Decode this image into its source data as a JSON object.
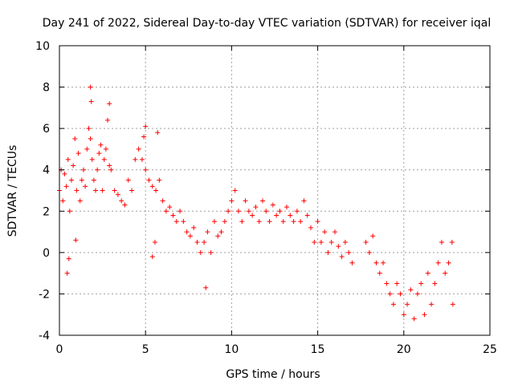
{
  "chart_data": {
    "type": "scatter",
    "title": "Day 241 of 2022, Sidereal Day-to-day VTEC variation (SDTVAR) for receiver iqal",
    "xlabel": "GPS time / hours",
    "ylabel": "SDTVAR / TECUs",
    "xlim": [
      0,
      25
    ],
    "ylim": [
      -4,
      10
    ],
    "xticks": [
      0,
      5,
      10,
      15,
      20,
      25
    ],
    "yticks": [
      -4,
      -2,
      0,
      2,
      4,
      6,
      8,
      10
    ],
    "xtick_labels": [
      "0",
      "5",
      "10",
      "15",
      "20",
      "25"
    ],
    "ytick_labels": [
      "-4",
      "-2",
      "0",
      "2",
      "4",
      "6",
      "8",
      "10"
    ],
    "grid": true,
    "marker": "+",
    "color": "#ff0000",
    "series": [
      {
        "name": "iqal",
        "x": [
          0.0,
          0.1,
          0.2,
          0.3,
          0.4,
          0.5,
          0.6,
          0.7,
          0.8,
          0.9,
          1.0,
          1.1,
          1.2,
          1.3,
          1.4,
          1.5,
          1.6,
          1.7,
          1.8,
          1.9,
          2.0,
          2.1,
          2.2,
          2.3,
          2.4,
          2.5,
          2.6,
          2.7,
          2.8,
          2.9,
          3.0,
          3.2,
          3.4,
          3.6,
          3.8,
          4.0,
          4.2,
          4.4,
          4.6,
          4.8,
          5.0,
          5.2,
          5.4,
          5.6,
          5.8,
          6.0,
          6.2,
          6.4,
          6.6,
          6.8,
          7.0,
          7.2,
          7.4,
          7.6,
          7.8,
          8.0,
          8.2,
          8.4,
          8.6,
          8.8,
          9.0,
          9.2,
          9.4,
          9.6,
          9.8,
          10.0,
          10.2,
          10.4,
          10.6,
          10.8,
          11.0,
          11.2,
          11.4,
          11.6,
          11.8,
          12.0,
          12.2,
          12.4,
          12.6,
          12.8,
          13.0,
          13.2,
          13.4,
          13.6,
          13.8,
          14.0,
          14.2,
          14.4,
          14.6,
          14.8,
          15.0,
          15.2,
          15.4,
          15.6,
          15.8,
          16.0,
          16.2,
          16.4,
          16.6,
          16.8,
          17.0,
          17.8,
          18.0,
          18.2,
          18.4,
          18.6,
          18.8,
          19.0,
          19.2,
          19.4,
          19.6,
          19.8,
          20.0,
          20.2,
          20.4,
          20.6,
          20.8,
          21.0,
          21.2,
          21.4,
          21.6,
          21.8,
          22.0,
          22.2,
          22.4,
          22.6,
          22.8
        ],
        "y": [
          3.0,
          4.0,
          2.5,
          3.8,
          3.2,
          4.5,
          2.0,
          3.5,
          4.2,
          5.5,
          3.0,
          4.8,
          2.5,
          3.5,
          4.0,
          3.2,
          5.0,
          6.0,
          5.5,
          4.5,
          3.5,
          3.0,
          4.0,
          4.8,
          5.2,
          3.0,
          4.5,
          5.0,
          6.4,
          4.2,
          4.0,
          3.0,
          2.8,
          2.5,
          2.3,
          3.5,
          3.0,
          4.5,
          5.0,
          4.5,
          4.0,
          3.5,
          3.2,
          3.0,
          3.5,
          2.5,
          2.0,
          2.2,
          1.8,
          1.5,
          2.0,
          1.5,
          1.0,
          0.8,
          1.2,
          0.5,
          0.0,
          0.5,
          1.0,
          0.0,
          1.5,
          0.8,
          1.0,
          1.5,
          2.0,
          2.5,
          3.0,
          2.0,
          1.5,
          2.5,
          2.0,
          1.8,
          2.2,
          1.5,
          2.5,
          2.0,
          1.5,
          2.3,
          1.8,
          2.0,
          1.5,
          2.2,
          1.8,
          1.5,
          2.0,
          1.5,
          2.5,
          1.8,
          1.2,
          0.5,
          1.5,
          0.5,
          1.0,
          0.0,
          0.5,
          1.0,
          0.3,
          -0.2,
          0.5,
          0.0,
          -0.5,
          0.5,
          0.0,
          0.8,
          -0.5,
          -1.0,
          -0.5,
          -1.5,
          -2.0,
          -2.5,
          -1.5,
          -2.0,
          -3.0,
          -2.5,
          -1.8,
          -3.2,
          -2.0,
          -1.5,
          -3.0,
          -1.0,
          -2.5,
          -1.5,
          -0.5,
          0.5,
          -1.0,
          -0.5,
          0.5
        ],
        "outliers_x": [
          1.8,
          1.85,
          2.9,
          4.9,
          5.0,
          5.4,
          5.7,
          0.45,
          0.55,
          0.95,
          5.55,
          8.5,
          22.85
        ],
        "outliers_y": [
          8.0,
          7.3,
          7.2,
          5.6,
          6.1,
          -0.2,
          5.8,
          -1.0,
          -0.3,
          0.6,
          0.5,
          -1.7,
          -2.5
        ]
      }
    ]
  }
}
